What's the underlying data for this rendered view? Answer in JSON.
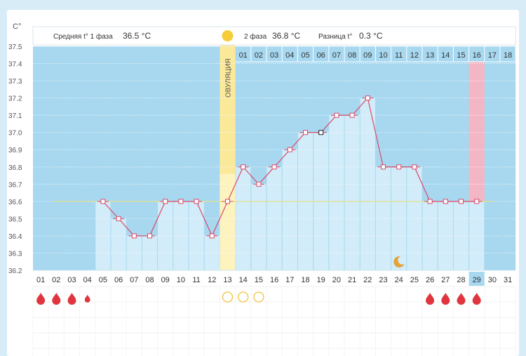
{
  "header": {
    "unit_label": "C°",
    "phase1_label": "Средняя t° 1 фаза",
    "phase1_value": "36.5 °C",
    "phase2_label": "2 фаза",
    "phase2_value": "36.8 °C",
    "diff_label": "Разница t°",
    "diff_value": "0.3 °C",
    "ovulation_label": "ОВУЛЯЦИЯ"
  },
  "colors": {
    "background": "#d8ecf8",
    "plot_dark": "#a7d8f0",
    "plot_light": "#d2ecf9",
    "ovulation": "#fbe99a",
    "highlight_day": "#f3b6c4",
    "line": "#d84a6a",
    "coverline": "#e4e088",
    "drop": "#e0353f",
    "moon": "#e3a23a"
  },
  "chart_data": {
    "type": "line",
    "title": "",
    "xlabel": "",
    "ylabel": "C°",
    "ylim": [
      36.2,
      37.5
    ],
    "y_ticks": [
      "36.2",
      "36.3",
      "36.4",
      "36.5",
      "36.6",
      "36.7",
      "36.8",
      "36.9",
      "37.0",
      "37.1",
      "37.2",
      "37.3",
      "37.4",
      "37.5"
    ],
    "cycle_days": [
      "01",
      "02",
      "03",
      "04",
      "05",
      "06",
      "07",
      "08",
      "09",
      "10",
      "11",
      "12",
      "13",
      "14",
      "15",
      "16",
      "17",
      "18",
      "19",
      "20",
      "21",
      "22",
      "23",
      "24",
      "25",
      "26",
      "27",
      "28",
      "29",
      "30",
      "31"
    ],
    "phase2_days": [
      "01",
      "02",
      "03",
      "04",
      "05",
      "06",
      "07",
      "08",
      "09",
      "10",
      "11",
      "12",
      "13",
      "14",
      "15",
      "16",
      "17",
      "18"
    ],
    "phase2_start_index": 13,
    "series": [
      {
        "values": [
          null,
          null,
          null,
          null,
          36.6,
          36.5,
          36.4,
          36.4,
          36.6,
          36.6,
          36.6,
          36.4,
          36.6,
          36.8,
          36.7,
          36.8,
          36.9,
          37.0,
          37.0,
          37.1,
          37.1,
          37.2,
          36.8,
          36.8,
          36.8,
          36.6,
          36.6,
          36.6,
          36.6,
          null,
          null
        ]
      }
    ],
    "coverline": 36.6,
    "ovulation_day_index": 12,
    "highlighted_day_index": 28,
    "moon_day_index": 23,
    "menstruation": [
      {
        "day_index": 0,
        "size": "large"
      },
      {
        "day_index": 1,
        "size": "large"
      },
      {
        "day_index": 2,
        "size": "large"
      },
      {
        "day_index": 3,
        "size": "small"
      },
      {
        "day_index": 25,
        "size": "large"
      },
      {
        "day_index": 26,
        "size": "large"
      },
      {
        "day_index": 27,
        "size": "large"
      },
      {
        "day_index": 28,
        "size": "large"
      }
    ],
    "ovulation_markers": [
      12,
      13,
      14
    ]
  }
}
